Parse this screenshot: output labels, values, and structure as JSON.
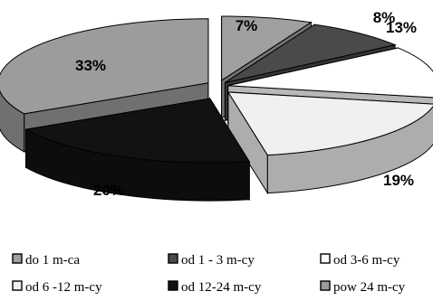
{
  "chart_data": {
    "type": "pie",
    "style": "3d-exploded",
    "title": "",
    "legend_position": "bottom",
    "slices": [
      {
        "label": "do 1 m-ca",
        "value": 7,
        "value_label": "7%",
        "color": "#a0a0a0"
      },
      {
        "label": "od 1 - 3 m-cy",
        "value": 8,
        "value_label": "8%",
        "color": "#4a4a4a"
      },
      {
        "label": "od 3-6 m-cy",
        "value": 13,
        "value_label": "13%",
        "color": "#ffffff"
      },
      {
        "label": "od 6 -12 m-cy",
        "value": 19,
        "value_label": "19%",
        "color": "#f0f0f0"
      },
      {
        "label": "od 12-24 m-cy",
        "value": 20,
        "value_label": "20%",
        "color": "#121212"
      },
      {
        "label": "pow 24 m-cy",
        "value": 33,
        "value_label": "33%",
        "color": "#9c9c9c"
      }
    ]
  }
}
